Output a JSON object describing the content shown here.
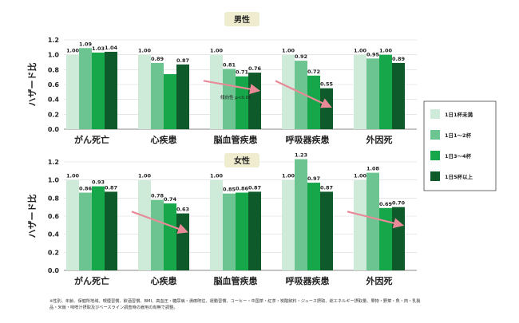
{
  "legend": [
    "1日1杯未満",
    "1日1～2杯",
    "1日3～4杯",
    "1日5杯以上"
  ],
  "colors": [
    "#cdebd8",
    "#6cc591",
    "#16a74a",
    "#0f5a2a"
  ],
  "chart_data": [
    {
      "type": "bar",
      "title": "男性",
      "ylabel": "ハザード比",
      "ylim": [
        0,
        1.2
      ],
      "yticks": [
        "0.0",
        "0.2",
        "0.4",
        "0.6",
        "0.8",
        "1.0",
        "1.2"
      ],
      "categories": [
        "がん死亡",
        "心疾患",
        "脳血管疾患",
        "呼吸器疾患",
        "外因死"
      ],
      "series": [
        {
          "name": "1日1杯未満",
          "values": [
            1.0,
            1.0,
            1.0,
            1.0,
            1.0
          ]
        },
        {
          "name": "1日1～2杯",
          "values": [
            1.09,
            0.89,
            0.81,
            0.92,
            0.95
          ]
        },
        {
          "name": "1日3～4杯",
          "values": [
            1.03,
            0.74,
            0.71,
            0.72,
            1.0
          ]
        },
        {
          "name": "1日5杯以上",
          "values": [
            1.04,
            0.87,
            0.76,
            0.55,
            0.89
          ]
        }
      ],
      "labels": [
        [
          "1.00",
          "1.09",
          "1.03",
          "1.04"
        ],
        [
          "1.00",
          "0.89",
          "",
          "0.87"
        ],
        [
          "1.00",
          "0.81",
          "0.71",
          "0.76"
        ],
        [
          "1.00",
          "0.92",
          "0.72",
          "0.55"
        ],
        [
          "1.00",
          "0.95",
          "1.00",
          "0.89"
        ]
      ],
      "annotation": "傾向性 p<0.05",
      "trend_arrows": [
        2,
        3
      ]
    },
    {
      "type": "bar",
      "title": "女性",
      "ylabel": "ハザード比",
      "ylim": [
        0,
        1.2
      ],
      "yticks": [
        "0.0",
        "0.2",
        "0.4",
        "0.6",
        "0.8",
        "1.0",
        "1.2"
      ],
      "categories": [
        "がん死亡",
        "心疾患",
        "脳血管疾患",
        "呼吸器疾患",
        "外因死"
      ],
      "series": [
        {
          "name": "1日1杯未満",
          "values": [
            1.0,
            1.0,
            1.0,
            1.0,
            1.0
          ]
        },
        {
          "name": "1日1～2杯",
          "values": [
            0.86,
            0.78,
            0.85,
            1.23,
            1.08
          ]
        },
        {
          "name": "1日3～4杯",
          "values": [
            0.93,
            0.74,
            0.86,
            0.97,
            0.69
          ]
        },
        {
          "name": "1日5杯以上",
          "values": [
            0.87,
            0.63,
            0.87,
            0.87,
            0.7
          ]
        }
      ],
      "labels": [
        [
          "1.00",
          "0.86",
          "0.93",
          "0.87"
        ],
        [
          "1.00",
          "0.78",
          "0.74",
          "0.63"
        ],
        [
          "1.00",
          "0.85",
          "0.86",
          "0.87"
        ],
        [
          "1.00",
          "1.23",
          "0.97",
          "0.87"
        ],
        [
          "1.00",
          "1.08",
          "0.69",
          "0.70"
        ]
      ],
      "trend_arrows": [
        1,
        4
      ]
    }
  ],
  "footnote": "※性別、年齢、保健所地域、喫煙習慣、飲酒習慣、BMI、高血圧・糖尿病・潰瘍既往、運動習慣、コーヒー・中国茶・紅茶・炭酸飲料・ジュース摂取、総エネルギー摂取量、果物・野菜・魚・肉・乳製品・米飯・味噌汁摂取及びベースライン調査時の雇用の有無で調整。"
}
